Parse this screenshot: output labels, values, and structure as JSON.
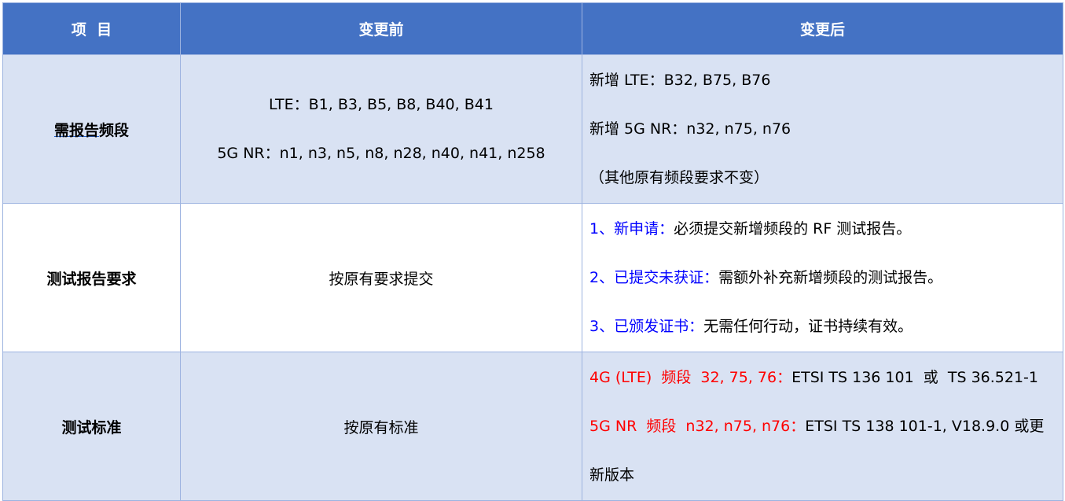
{
  "header": {
    "item": "项  目",
    "before": "变更前",
    "after": "变更后"
  },
  "rows": [
    {
      "item_underlined": "需报告",
      "item_rest": "频段",
      "before": [
        "LTE：B1, B3, B5, B8, B40, B41",
        "5G NR：n1, n3, n5, n8, n28, n40, n41, n258"
      ],
      "after": [
        "新增 LTE：B32, B75, B76",
        "新增 5G NR：n32, n75, n76",
        "（其他原有频段要求不变）"
      ]
    },
    {
      "item": "测试报告要求",
      "before": "按原有要求提交",
      "after": [
        {
          "label": "1、新申请：",
          "text": "必须提交新增频段的 RF 测试报告。"
        },
        {
          "label": "2、已提交未获证：",
          "text": "需额外补充新增频段的测试报告。"
        },
        {
          "label": "3、已颁发证书：",
          "text": "无需任何行动，证书持续有效。"
        }
      ]
    },
    {
      "item": "测试标准",
      "before": "按原有标准",
      "after": [
        {
          "label": "4G (LTE)  频段  32, 75, 76：",
          "text": "ETSI TS 136 101  或  TS 36.521-1"
        },
        {
          "label": "5G NR  频段  n32, n75, n76：",
          "text": "ETSI TS 138 101-1, V18.9.0 或更"
        },
        {
          "label": "",
          "text": "新版本"
        }
      ]
    }
  ],
  "colors": {
    "header_bg": "#4472c4",
    "row_shade": "#d9e2f3",
    "label_blue": "#0000ff",
    "label_red": "#ff0000"
  }
}
